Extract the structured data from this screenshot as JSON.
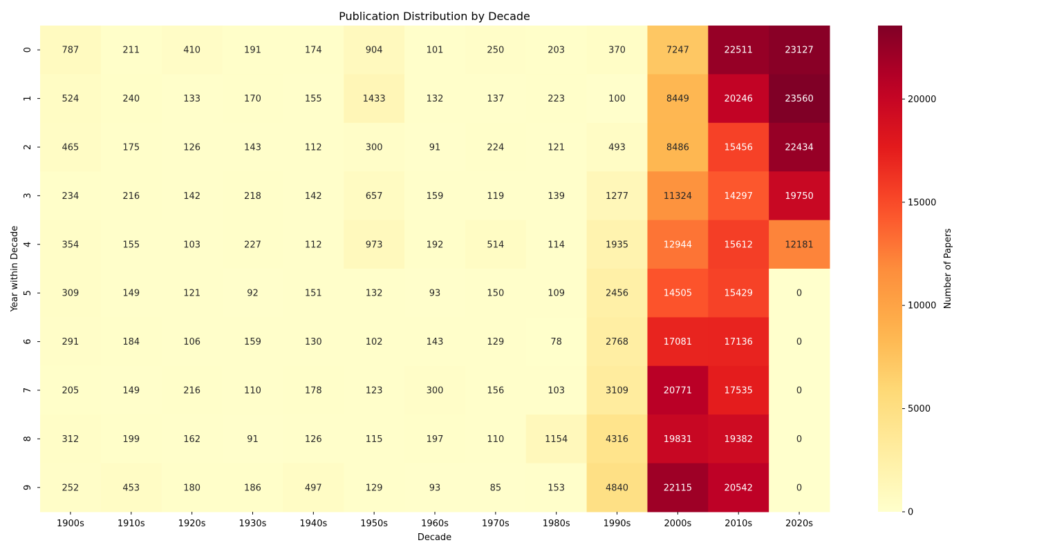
{
  "chart_data": {
    "type": "heatmap",
    "title": "Publication Distribution by Decade",
    "xlabel": "Decade",
    "ylabel": "Year within Decade",
    "x_categories": [
      "1900s",
      "1910s",
      "1920s",
      "1930s",
      "1940s",
      "1950s",
      "1960s",
      "1970s",
      "1980s",
      "1990s",
      "2000s",
      "2010s",
      "2020s"
    ],
    "y_categories": [
      "0",
      "1",
      "2",
      "3",
      "4",
      "5",
      "6",
      "7",
      "8",
      "9"
    ],
    "values": [
      [
        787,
        211,
        410,
        191,
        174,
        904,
        101,
        250,
        203,
        370,
        7247,
        22511,
        23127
      ],
      [
        524,
        240,
        133,
        170,
        155,
        1433,
        132,
        137,
        223,
        100,
        8449,
        20246,
        23560
      ],
      [
        465,
        175,
        126,
        143,
        112,
        300,
        91,
        224,
        121,
        493,
        8486,
        15456,
        22434
      ],
      [
        234,
        216,
        142,
        218,
        142,
        657,
        159,
        119,
        139,
        1277,
        11324,
        14297,
        19750
      ],
      [
        354,
        155,
        103,
        227,
        112,
        973,
        192,
        514,
        114,
        1935,
        12944,
        15612,
        12181
      ],
      [
        309,
        149,
        121,
        92,
        151,
        132,
        93,
        150,
        109,
        2456,
        14505,
        15429,
        0
      ],
      [
        291,
        184,
        106,
        159,
        130,
        102,
        143,
        129,
        78,
        2768,
        17081,
        17136,
        0
      ],
      [
        205,
        149,
        216,
        110,
        178,
        123,
        300,
        156,
        103,
        3109,
        20771,
        17535,
        0
      ],
      [
        312,
        199,
        162,
        91,
        126,
        115,
        197,
        110,
        1154,
        4316,
        19831,
        19382,
        0
      ],
      [
        252,
        453,
        180,
        186,
        497,
        129,
        93,
        85,
        153,
        4840,
        22115,
        20542,
        0
      ]
    ],
    "colorbar": {
      "label": "Number of Papers",
      "ticks": [
        0,
        5000,
        10000,
        15000,
        20000
      ],
      "range": [
        0,
        23560
      ],
      "colormap": "YlOrRd"
    },
    "grid": false
  }
}
